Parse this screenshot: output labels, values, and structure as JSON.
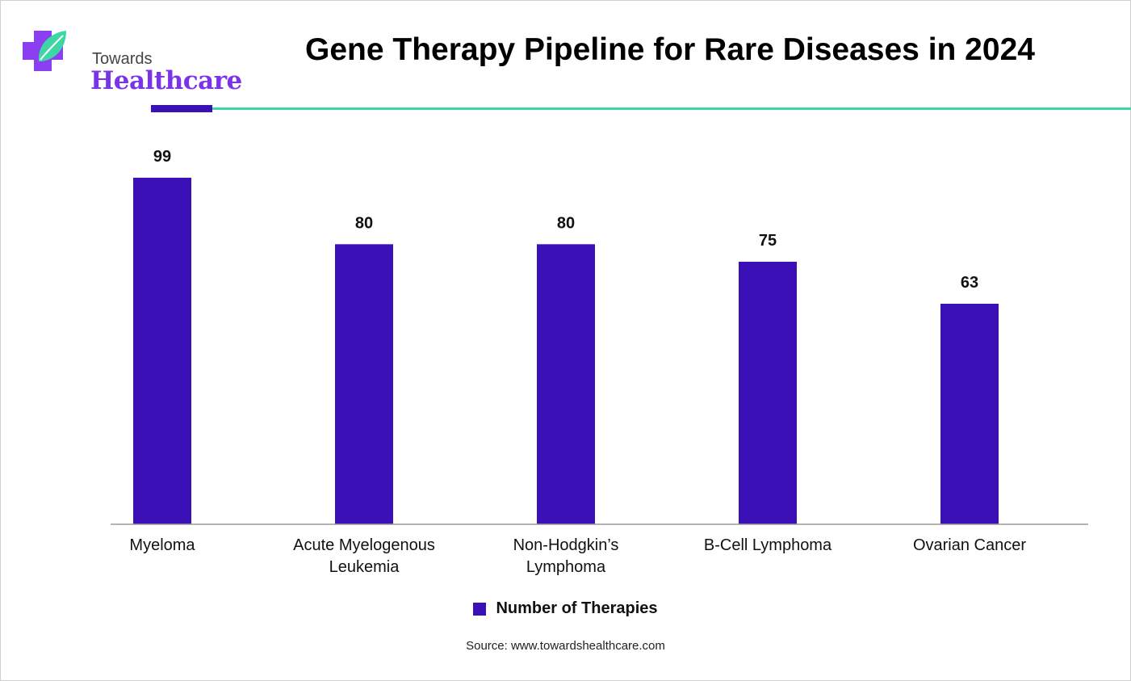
{
  "brand": {
    "line1": "Towards",
    "line2": "Healthcare",
    "colors": {
      "purple": "#7a33e8",
      "teal": "#3fd6a6"
    },
    "icon": "medical-cross-leaf-icon"
  },
  "chart_data": {
    "type": "bar",
    "title": "Gene Therapy Pipeline for Rare Diseases in 2024",
    "categories": [
      [
        "Myeloma"
      ],
      [
        "Acute Myelogenous",
        "Leukemia"
      ],
      [
        "Non-Hodgkin’s",
        "Lymphoma"
      ],
      [
        "B-Cell Lymphoma"
      ],
      [
        "Ovarian Cancer"
      ]
    ],
    "series": [
      {
        "name": "Number of Therapies",
        "values": [
          99,
          80,
          80,
          75,
          63
        ],
        "color": "#3b11b7"
      }
    ],
    "xlabel": "",
    "ylabel": "",
    "ylim": [
      0,
      99
    ],
    "grid": false,
    "legend_position": "bottom-center",
    "data_labels": true
  },
  "source": "Source: www.towardshealthcare.com"
}
